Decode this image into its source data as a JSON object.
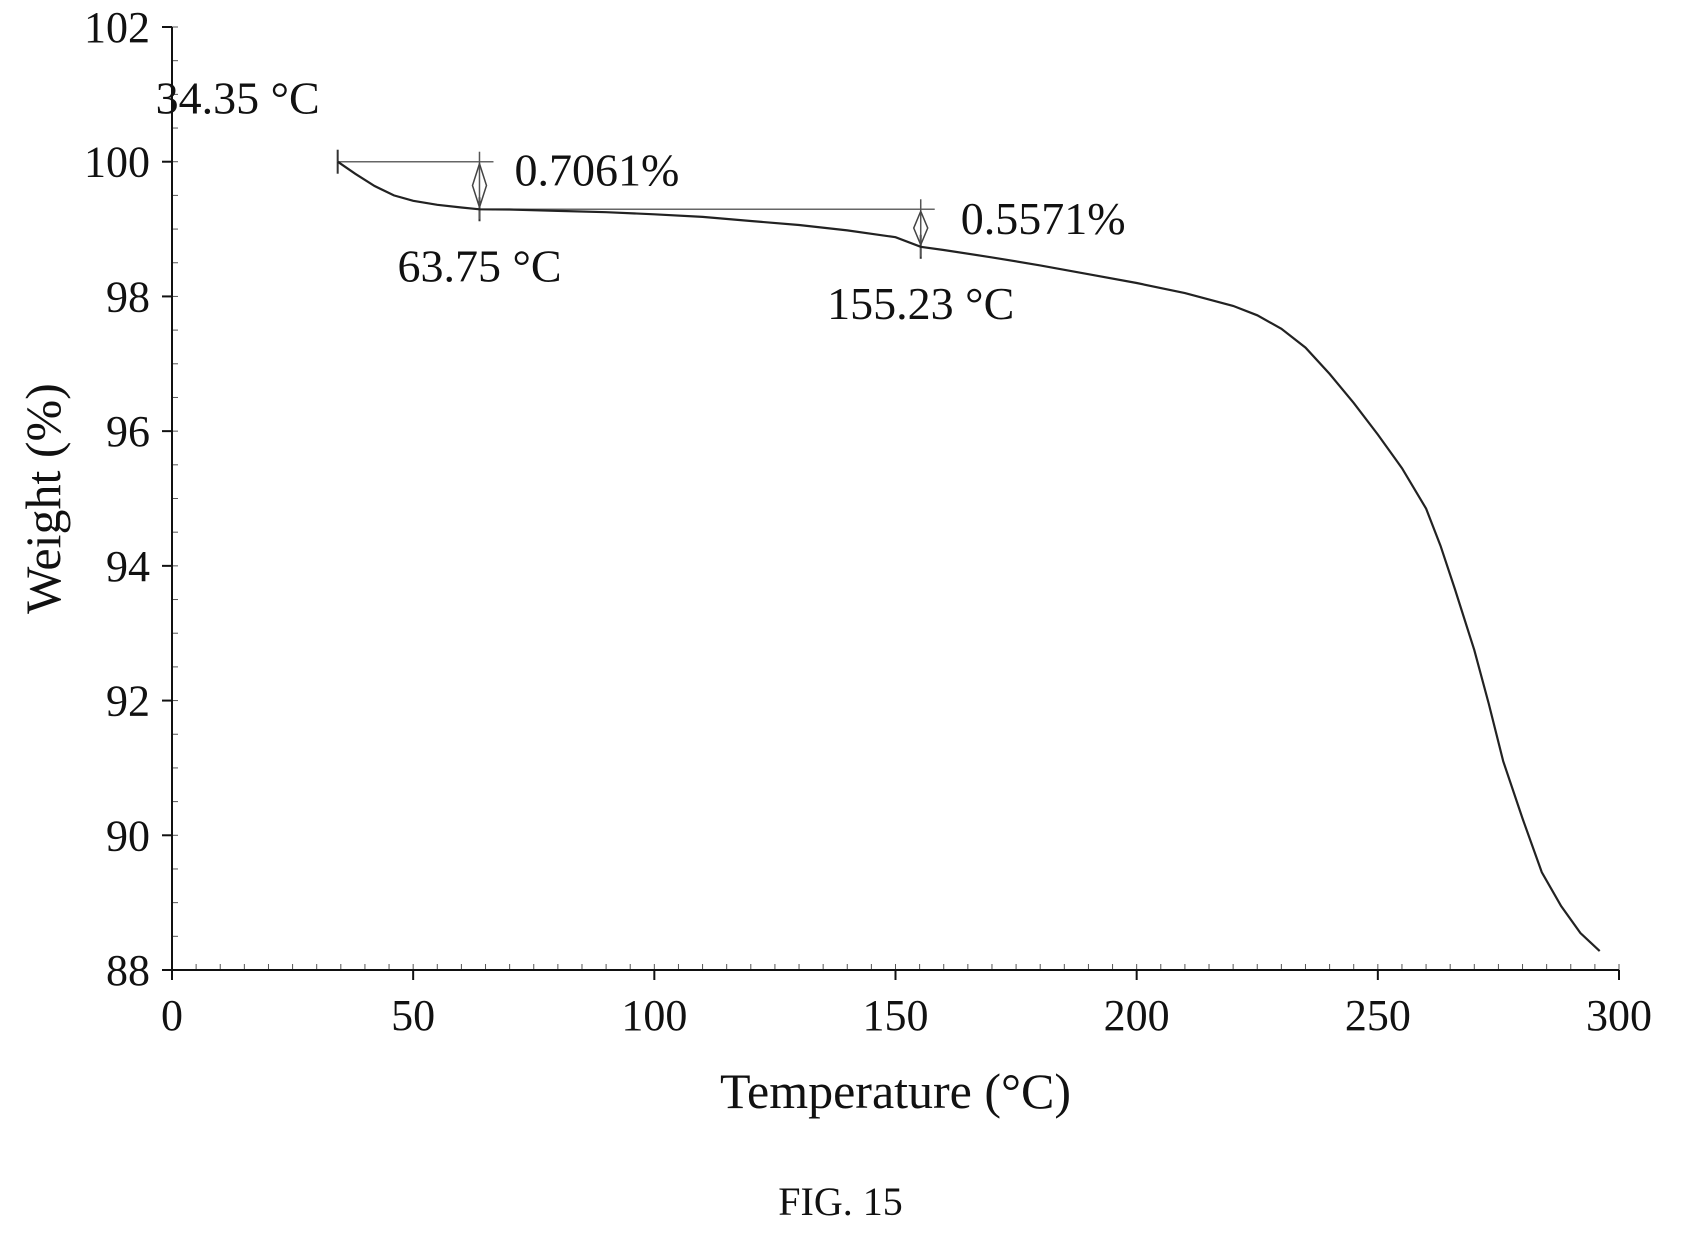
{
  "figure": {
    "caption": "FIG. 15"
  },
  "chart_data": {
    "type": "line",
    "title": "",
    "xlabel": "Temperature (°C)",
    "ylabel": "Weight (%)",
    "xlim": [
      0,
      300
    ],
    "ylim": [
      88,
      102
    ],
    "xticks": [
      0,
      50,
      100,
      150,
      200,
      250,
      300
    ],
    "yticks": [
      88,
      90,
      92,
      94,
      96,
      98,
      100,
      102
    ],
    "grid": false,
    "legend": "none",
    "series": [
      {
        "color": "#222222",
        "x": [
          34.35,
          38,
          42,
          46,
          50,
          55,
          60,
          63.75,
          70,
          80,
          90,
          100,
          110,
          120,
          130,
          140,
          150,
          155.23,
          160,
          170,
          180,
          190,
          200,
          210,
          220,
          225,
          230,
          235,
          240,
          245,
          250,
          255,
          260,
          263,
          266,
          270,
          273,
          276,
          280,
          284,
          288,
          292,
          296
        ],
        "y": [
          100.0,
          99.82,
          99.64,
          99.5,
          99.42,
          99.36,
          99.32,
          99.294,
          99.29,
          99.27,
          99.25,
          99.22,
          99.18,
          99.12,
          99.06,
          98.98,
          98.88,
          98.737,
          98.69,
          98.58,
          98.46,
          98.33,
          98.2,
          98.05,
          97.86,
          97.72,
          97.52,
          97.24,
          96.85,
          96.42,
          95.95,
          95.45,
          94.85,
          94.3,
          93.65,
          92.75,
          91.95,
          91.1,
          90.25,
          89.45,
          88.95,
          88.55,
          88.28
        ]
      }
    ],
    "annotations": [
      {
        "type": "point_label",
        "x": 34.35,
        "y": 100.0,
        "text": "34.35 °C"
      },
      {
        "type": "point_label",
        "x": 63.75,
        "y": 99.294,
        "text": "63.75 °C"
      },
      {
        "type": "point_label",
        "x": 155.23,
        "y": 98.737,
        "text": "155.23 °C"
      },
      {
        "type": "step",
        "x_from": 34.35,
        "x_to": 63.75,
        "y_top": 100.0,
        "y_bottom": 99.294,
        "text": "0.7061%"
      },
      {
        "type": "step",
        "x_from": 63.75,
        "x_to": 155.23,
        "y_top": 99.294,
        "y_bottom": 98.737,
        "text": "0.5571%"
      }
    ]
  }
}
